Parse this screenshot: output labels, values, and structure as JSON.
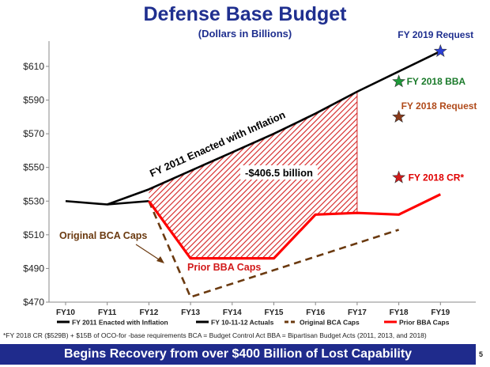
{
  "chart_data": {
    "type": "line",
    "title": "Defense Base Budget",
    "subtitle": "(Dollars in Billions)",
    "categories": [
      "FY10",
      "FY11",
      "FY12",
      "FY13",
      "FY14",
      "FY15",
      "FY16",
      "FY17",
      "FY18",
      "FY19"
    ],
    "ylim": [
      470,
      625
    ],
    "yticks": [
      470,
      490,
      510,
      530,
      550,
      570,
      590,
      610
    ],
    "ytick_labels": [
      "$470",
      "$490",
      "$510",
      "$530",
      "$550",
      "$570",
      "$590",
      "$610"
    ],
    "grid": false,
    "legend_position": "bottom",
    "series": [
      {
        "name": "FY 2011 Enacted with Inflation",
        "color": "#000000",
        "style": "solid",
        "values": [
          null,
          528,
          537,
          548,
          559,
          570,
          582,
          595,
          607,
          619
        ]
      },
      {
        "name": "FY 10-11-12 Actuals",
        "color": "#000000",
        "style": "solid",
        "values": [
          530,
          528,
          530,
          null,
          null,
          null,
          null,
          null,
          null,
          null
        ]
      },
      {
        "name": "Original BCA Caps",
        "color": "#6b3a10",
        "style": "dashed",
        "values": [
          null,
          null,
          530,
          473,
          481,
          489,
          497,
          505,
          513,
          null
        ]
      },
      {
        "name": "Prior BBA Caps",
        "color": "#ff0000",
        "style": "solid",
        "values": [
          null,
          null,
          530,
          496,
          496,
          496,
          522,
          523,
          522,
          534
        ]
      }
    ],
    "points": [
      {
        "label": "FY 2019 Request",
        "category": "FY19",
        "value": 619,
        "color": "#2b3fd6",
        "label_color": "#1f2f8f"
      },
      {
        "label": "FY 2018 BBA",
        "category": "FY18",
        "value": 601,
        "color": "#1f9a3a",
        "label_color": "#1a7a2a"
      },
      {
        "label": "FY 2018 Request",
        "category": "FY18",
        "value": 580,
        "color": "#8b3a1a",
        "label_color": "#b04a1a"
      },
      {
        "label": "FY 2018 CR*",
        "category": "FY18",
        "value": 544,
        "color": "#d21a1a",
        "label_color": "#e00000"
      }
    ],
    "annotations": [
      {
        "text": "FY 2011 Enacted with Inflation"
      },
      {
        "text": "-$406.5 billion"
      },
      {
        "text": "Original BCA Caps"
      },
      {
        "text": "Prior BBA Caps"
      }
    ],
    "shaded_area": {
      "between": [
        "FY 2011 Enacted with Inflation",
        "Prior BBA Caps"
      ],
      "from": "FY12",
      "to": "FY17",
      "color": "#d42020",
      "pattern": "hatch"
    }
  },
  "footnote": "*FY 2018 CR ($529B) + $15B of OCO-for -base requirements      BCA = Budget Control Act      BBA = Bipartisan Budget Acts (2011, 2013, and 2018)",
  "banner": "Begins Recovery from over $400 Billion of Lost Capability",
  "page_number": "5"
}
